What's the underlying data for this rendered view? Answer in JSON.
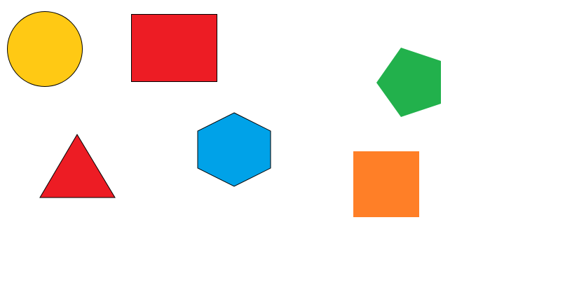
{
  "shapes": [
    {
      "id": "yellow-circle",
      "kind": "circle",
      "color": "#ffc914"
    },
    {
      "id": "red-rectangle",
      "kind": "rectangle",
      "color": "#ed1c24"
    },
    {
      "id": "green-pentagon",
      "kind": "pentagon",
      "color": "#22b14c"
    },
    {
      "id": "red-triangle",
      "kind": "triangle",
      "color": "#ed1c24"
    },
    {
      "id": "blue-hexagon",
      "kind": "hexagon",
      "color": "#00a2e8"
    },
    {
      "id": "orange-square",
      "kind": "square",
      "color": "#ff7f27"
    }
  ]
}
